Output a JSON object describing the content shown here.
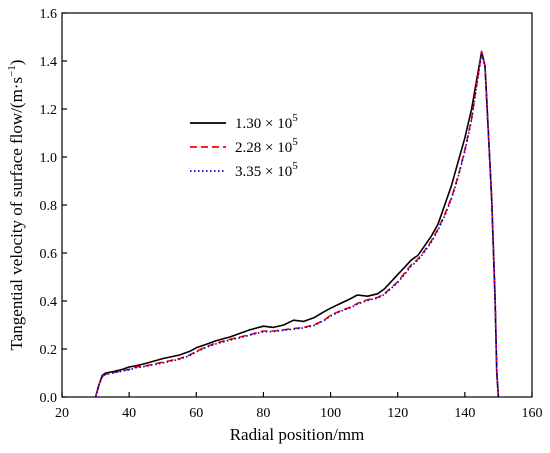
{
  "chart_data": {
    "type": "line",
    "title": "",
    "xlabel": "Radial position/mm",
    "ylabel": "Tangential velocity of surface flow/(m·s",
    "ylabel_unit_exponent": "−1",
    "ylabel_close": ")",
    "xlim": [
      20,
      160
    ],
    "ylim": [
      0,
      1.6
    ],
    "x_ticks": [
      "20",
      "40",
      "60",
      "80",
      "100",
      "120",
      "140",
      "160"
    ],
    "y_ticks": [
      "0.0",
      "0.2",
      "0.4",
      "0.6",
      "0.8",
      "1.0",
      "1.2",
      "1.4",
      "1.6"
    ],
    "x_tick_values": [
      20,
      40,
      60,
      80,
      100,
      120,
      140,
      160
    ],
    "y_tick_values": [
      0,
      0.2,
      0.4,
      0.6,
      0.8,
      1.0,
      1.2,
      1.4,
      1.6
    ],
    "grid": false,
    "legend_position": "upper-left",
    "series": [
      {
        "name_base": "1.30 × 10",
        "name_exp": "5",
        "color": "#000000",
        "dash": "",
        "x": [
          30,
          31,
          32,
          33,
          35,
          38,
          40,
          42,
          45,
          50,
          55,
          58,
          60,
          63,
          66,
          70,
          73,
          76,
          80,
          83,
          86,
          89,
          92,
          95,
          98,
          100,
          103,
          106,
          108,
          111,
          114,
          116,
          118,
          120,
          122,
          124,
          126,
          128,
          130,
          132,
          134,
          136,
          138,
          140,
          142,
          143.5,
          144.5,
          145,
          146,
          147,
          148,
          149,
          149.5,
          150
        ],
        "y": [
          0.0,
          0.05,
          0.09,
          0.1,
          0.105,
          0.115,
          0.125,
          0.13,
          0.14,
          0.16,
          0.175,
          0.19,
          0.205,
          0.22,
          0.235,
          0.25,
          0.265,
          0.28,
          0.295,
          0.29,
          0.3,
          0.32,
          0.315,
          0.33,
          0.355,
          0.37,
          0.39,
          0.41,
          0.425,
          0.42,
          0.43,
          0.45,
          0.48,
          0.51,
          0.54,
          0.57,
          0.59,
          0.63,
          0.67,
          0.72,
          0.8,
          0.88,
          0.98,
          1.08,
          1.2,
          1.32,
          1.4,
          1.44,
          1.38,
          1.1,
          0.82,
          0.4,
          0.1,
          0.0
        ]
      },
      {
        "name_base": "2.28 × 10",
        "name_exp": "5",
        "color": "#ff0000",
        "dash": "7,4",
        "x": [
          30,
          31,
          32,
          33,
          35,
          38,
          40,
          42,
          45,
          50,
          55,
          58,
          60,
          63,
          66,
          70,
          73,
          76,
          80,
          83,
          86,
          89,
          92,
          95,
          98,
          100,
          103,
          106,
          108,
          111,
          114,
          116,
          118,
          120,
          122,
          124,
          126,
          128,
          130,
          132,
          134,
          136,
          138,
          140,
          142,
          143.5,
          144.5,
          145,
          146,
          147,
          148,
          149,
          149.5,
          150
        ],
        "y": [
          0.0,
          0.05,
          0.085,
          0.095,
          0.1,
          0.11,
          0.115,
          0.125,
          0.13,
          0.145,
          0.16,
          0.175,
          0.19,
          0.21,
          0.225,
          0.24,
          0.25,
          0.26,
          0.275,
          0.275,
          0.28,
          0.285,
          0.29,
          0.3,
          0.32,
          0.34,
          0.36,
          0.375,
          0.39,
          0.405,
          0.415,
          0.43,
          0.455,
          0.48,
          0.515,
          0.55,
          0.575,
          0.61,
          0.65,
          0.7,
          0.76,
          0.83,
          0.92,
          1.03,
          1.16,
          1.3,
          1.39,
          1.44,
          1.38,
          1.1,
          0.83,
          0.42,
          0.1,
          0.0
        ]
      },
      {
        "name_base": "3.35 × 10",
        "name_exp": "5",
        "color": "#0000cc",
        "dash": "1.5,2.5",
        "x": [
          30,
          31,
          32,
          33,
          35,
          38,
          40,
          42,
          45,
          50,
          55,
          58,
          60,
          63,
          66,
          70,
          73,
          76,
          80,
          83,
          86,
          89,
          92,
          95,
          98,
          100,
          103,
          106,
          108,
          111,
          114,
          116,
          118,
          120,
          122,
          124,
          126,
          128,
          130,
          132,
          134,
          136,
          138,
          140,
          142,
          143.5,
          144.5,
          145,
          146,
          147,
          148,
          149,
          149.5,
          150
        ],
        "y": [
          0.0,
          0.05,
          0.085,
          0.095,
          0.1,
          0.108,
          0.113,
          0.122,
          0.128,
          0.142,
          0.157,
          0.172,
          0.188,
          0.207,
          0.222,
          0.237,
          0.247,
          0.258,
          0.272,
          0.273,
          0.278,
          0.283,
          0.288,
          0.298,
          0.318,
          0.338,
          0.357,
          0.372,
          0.387,
          0.402,
          0.412,
          0.427,
          0.452,
          0.477,
          0.51,
          0.545,
          0.57,
          0.605,
          0.645,
          0.695,
          0.755,
          0.825,
          0.915,
          1.025,
          1.155,
          1.295,
          1.385,
          1.435,
          1.375,
          1.1,
          0.83,
          0.42,
          0.1,
          0.0
        ]
      }
    ]
  }
}
